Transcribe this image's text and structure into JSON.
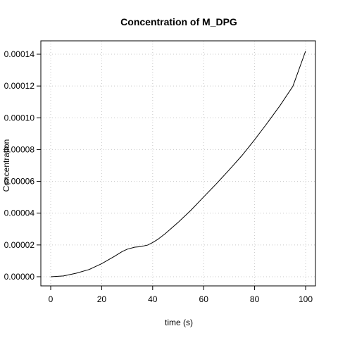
{
  "chart_data": {
    "type": "line",
    "title": "Concentration of M_DPG",
    "xlabel": "time (s)",
    "ylabel": "Concentration",
    "xlim": [
      0,
      100
    ],
    "ylim": [
      0,
      0.00014
    ],
    "x_ticks": [
      0,
      20,
      40,
      60,
      80,
      100
    ],
    "y_ticks": [
      0,
      2e-05,
      4e-05,
      6e-05,
      8e-05,
      0.0001,
      0.00012,
      0.00014
    ],
    "x_tick_labels": [
      "0",
      "20",
      "40",
      "60",
      "80",
      "100"
    ],
    "y_tick_labels": [
      "0.00000",
      "0.00002",
      "0.00004",
      "0.00006",
      "0.00008",
      "0.00010",
      "0.00012",
      "0.00014"
    ],
    "grid": true,
    "series": [
      {
        "color": "#000000",
        "x": [
          0,
          5,
          10,
          15,
          20,
          25,
          28,
          30,
          33,
          35,
          38,
          40,
          42,
          45,
          50,
          55,
          60,
          65,
          70,
          75,
          80,
          85,
          90,
          95,
          100
        ],
        "y": [
          0,
          5e-07,
          2.2e-06,
          4.5e-06,
          8.2e-06,
          1.28e-05,
          1.58e-05,
          1.73e-05,
          1.86e-05,
          1.89e-05,
          1.99e-05,
          2.15e-05,
          2.35e-05,
          2.72e-05,
          3.42e-05,
          4.18e-05,
          5.02e-05,
          5.85e-05,
          6.72e-05,
          7.62e-05,
          8.62e-05,
          9.68e-05,
          0.0001078,
          0.0001198,
          0.000142
        ]
      }
    ]
  }
}
